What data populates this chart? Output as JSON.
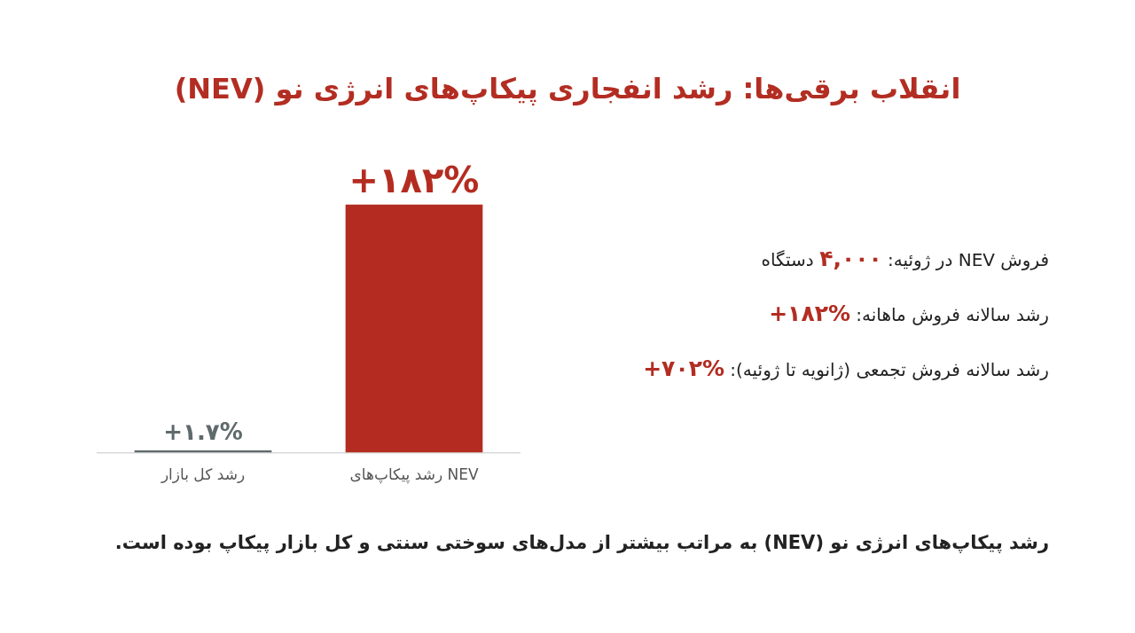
{
  "chart_data": {
    "type": "bar",
    "title": "انقلاب برقی‌ها: رشد انفجاری پیکاپ‌های انرژی نو (NEV)",
    "categories": [
      "رشد کل بازار",
      "رشد پیکاپ‌های NEV"
    ],
    "values": [
      1.7,
      182
    ],
    "colors": [
      "#5f6a6b",
      "#b42c21"
    ],
    "value_labels": [
      "+۱.۷%",
      "+۱۸۲%"
    ],
    "annotations": [
      "فروش NEV در ژوئیه: ۴,۰۰۰ دستگاه",
      "رشد سالانه فروش ماهانه: +۱۸۲%",
      "رشد سالانه فروش تجمعی (ژانویه تا ژوئیه): +۷۰۲%",
      "رشد پیکاپ‌های انرژی نو (NEV) به مراتب بیشتر از مدل‌های سوختی سنتی و کل بازار پیکاپ بوده است."
    ]
  }
}
